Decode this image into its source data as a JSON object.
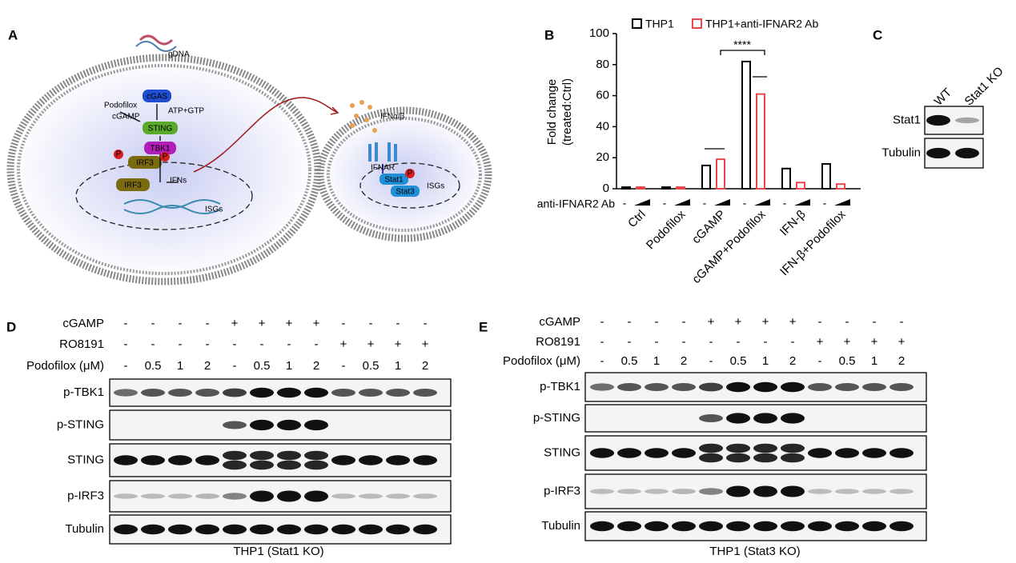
{
  "panel_labels": [
    "A",
    "B",
    "C",
    "D",
    "E"
  ],
  "diagram": {
    "labels": [
      "gDNA",
      "cGAS",
      "ATP+GTP",
      "Podofilox",
      "cGAMP",
      "STING",
      "TBK1",
      "IRF3",
      "IRF3",
      "IFNs",
      "ISGs",
      "IFNα/β",
      "IFNAR",
      "Stat1",
      "Stat3",
      "ISGs",
      "P",
      "P",
      "P"
    ]
  },
  "chart_data": {
    "type": "bar",
    "y_label": [
      "Fold change",
      "(treated:Ctrl)"
    ],
    "categories": [
      "Ctrl",
      "Podofilox",
      "cGAMP",
      "cGAMP+Podofilox",
      "IFN-β",
      "IFN-β+Podofilox"
    ],
    "series": [
      {
        "name": "THP1",
        "color": "#000000",
        "values": [
          1,
          1,
          15,
          82,
          13,
          16
        ]
      },
      {
        "name": "THP1+anti-IFNAR2 Ab",
        "color": "#e8474a",
        "values": [
          1,
          1,
          19,
          61,
          4,
          3
        ]
      }
    ],
    "ylim": [
      0,
      100
    ],
    "yticks": [
      0,
      20,
      40,
      60,
      80,
      100
    ],
    "annotation": "****",
    "factor_label": "anti-IFNAR2 Ab",
    "factor_signs": [
      "-",
      "-",
      "-",
      "-",
      "-",
      "-"
    ]
  },
  "blot_c": {
    "columns": [
      "WT",
      "Stat1 KO"
    ],
    "rows": [
      "Stat1",
      "Tubulin"
    ]
  },
  "blot_d": {
    "conditions": [
      {
        "name": "cGAMP",
        "values": [
          "-",
          "-",
          "-",
          "-",
          "+",
          "+",
          "+",
          "+",
          "-",
          "-",
          "-",
          "-"
        ]
      },
      {
        "name": "RO8191",
        "values": [
          "-",
          "-",
          "-",
          "-",
          "-",
          "-",
          "-",
          "-",
          "+",
          "+",
          "+",
          "+"
        ]
      },
      {
        "name": "Podofilox (μM)",
        "values": [
          "-",
          "0.5",
          "1",
          "2",
          "-",
          "0.5",
          "1",
          "2",
          "-",
          "0.5",
          "1",
          "2"
        ]
      }
    ],
    "rows": [
      "p-TBK1",
      "p-STING",
      "STING",
      "p-IRF3",
      "Tubulin"
    ],
    "caption": "THP1 (Stat1 KO)"
  },
  "blot_e": {
    "conditions": [
      {
        "name": "cGAMP",
        "values": [
          "-",
          "-",
          "-",
          "-",
          "+",
          "+",
          "+",
          "+",
          "-",
          "-",
          "-",
          "-"
        ]
      },
      {
        "name": "RO8191",
        "values": [
          "-",
          "-",
          "-",
          "-",
          "-",
          "-",
          "-",
          "-",
          "+",
          "+",
          "+",
          "+"
        ]
      },
      {
        "name": "Podofilox (μM)",
        "values": [
          "-",
          "0.5",
          "1",
          "2",
          "-",
          "0.5",
          "1",
          "2",
          "-",
          "0.5",
          "1",
          "2"
        ]
      }
    ],
    "rows": [
      "p-TBK1",
      "p-STING",
      "STING",
      "p-IRF3",
      "Tubulin"
    ],
    "caption": "THP1 (Stat3 KO)"
  }
}
